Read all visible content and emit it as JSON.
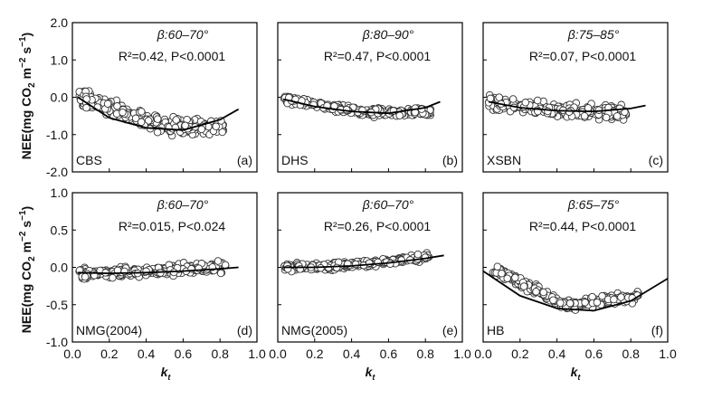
{
  "y_axis_title": {
    "pre": "NEE(mg CO",
    "sub": "2",
    "mid1": " m",
    "sup1": "−2",
    "mid2": " s",
    "sup2": "−1",
    "post": ")"
  },
  "x_axis_title": {
    "main": "k",
    "sub": "t"
  },
  "x_ticks": [
    "0.0",
    "0.2",
    "0.4",
    "0.6",
    "0.8",
    "1.0"
  ],
  "colors": {
    "marker_fill": "#ffffff",
    "marker_stroke": "#333333",
    "line": "#000000",
    "frame": "#000000"
  },
  "chart_data": [
    {
      "type": "scatter",
      "site": "CBS",
      "panel": "(a)",
      "beta": "β:60–70°",
      "r2": "R²=0.42",
      "p": "P<0.0001",
      "ylim": [
        -2.0,
        2.0
      ],
      "yticks": [
        "-2.0",
        "-1.0",
        "0.0",
        "1.0",
        "2.0"
      ],
      "xlim": [
        0.0,
        1.0
      ],
      "scatter_range": [
        0.03,
        0.83
      ],
      "center": [
        0.05,
        0.0,
        0.5,
        -0.78,
        0.75,
        -0.8
      ],
      "spread": 0.3,
      "fit": {
        "x": [
          0.03,
          0.2,
          0.4,
          0.6,
          0.8,
          0.9
        ],
        "y": [
          0.0,
          -0.55,
          -0.82,
          -0.88,
          -0.6,
          -0.32
        ]
      }
    },
    {
      "type": "scatter",
      "site": "DHS",
      "panel": "(b)",
      "beta": "β:80–90°",
      "r2": "R²=0.47",
      "p": "P<0.0001",
      "ylim": [
        -2.0,
        2.0
      ],
      "yticks": [
        "-2.0",
        "-1.0",
        "0.0",
        "1.0",
        "2.0"
      ],
      "xlim": [
        0.0,
        1.0
      ],
      "scatter_range": [
        0.03,
        0.83
      ],
      "center": [
        0.05,
        -0.05,
        0.45,
        -0.4,
        0.75,
        -0.4
      ],
      "spread": 0.15,
      "fit": {
        "x": [
          0.03,
          0.2,
          0.4,
          0.6,
          0.8,
          0.88
        ],
        "y": [
          -0.05,
          -0.25,
          -0.38,
          -0.43,
          -0.28,
          -0.12
        ]
      }
    },
    {
      "type": "scatter",
      "site": "XSBN",
      "panel": "(c)",
      "beta": "β:75–85°",
      "r2": "R²=0.07",
      "p": "P<0.0001",
      "ylim": [
        -2.0,
        2.0
      ],
      "yticks": [
        "-2.0",
        "-1.0",
        "0.0",
        "1.0",
        "2.0"
      ],
      "xlim": [
        0.0,
        1.0
      ],
      "scatter_range": [
        0.03,
        0.78
      ],
      "center": [
        0.05,
        -0.15,
        0.4,
        -0.35,
        0.75,
        -0.4
      ],
      "spread": 0.25,
      "fit": {
        "x": [
          0.03,
          0.2,
          0.4,
          0.6,
          0.8,
          0.88
        ],
        "y": [
          -0.12,
          -0.28,
          -0.36,
          -0.38,
          -0.3,
          -0.22
        ]
      }
    },
    {
      "type": "scatter",
      "site": "NMG(2004)",
      "panel": "(d)",
      "beta": "β:60–70°",
      "r2": "R²=0.015",
      "p": "P<0.024",
      "ylim": [
        -1.0,
        1.0
      ],
      "yticks": [
        "-1.0",
        "-0.5",
        "0.0",
        "0.5",
        "1.0"
      ],
      "xlim": [
        0.0,
        1.0
      ],
      "scatter_range": [
        0.03,
        0.83
      ],
      "center": [
        0.05,
        -0.08,
        0.45,
        -0.05,
        0.75,
        0.0
      ],
      "spread": 0.1,
      "fit": {
        "x": [
          0.03,
          0.2,
          0.4,
          0.6,
          0.8,
          0.9
        ],
        "y": [
          -0.07,
          -0.08,
          -0.07,
          -0.05,
          -0.02,
          0.0
        ]
      }
    },
    {
      "type": "scatter",
      "site": "NMG(2005)",
      "panel": "(e)",
      "beta": "β:60–70°",
      "r2": "R²=0.26",
      "p": "P<0.0001",
      "ylim": [
        -1.0,
        1.0
      ],
      "yticks": [
        "-1.0",
        "-0.5",
        "0.0",
        "0.5",
        "1.0"
      ],
      "xlim": [
        0.0,
        1.0
      ],
      "scatter_range": [
        0.03,
        0.82
      ],
      "center": [
        0.05,
        0.0,
        0.45,
        0.03,
        0.75,
        0.12
      ],
      "spread": 0.07,
      "fit": {
        "x": [
          0.03,
          0.2,
          0.4,
          0.6,
          0.8,
          0.9
        ],
        "y": [
          0.0,
          0.0,
          0.02,
          0.06,
          0.12,
          0.16
        ]
      }
    },
    {
      "type": "scatter",
      "site": "HB",
      "panel": "(f)",
      "beta": "β:65–75°",
      "r2": "R²=0.44",
      "p": "P<0.0001",
      "ylim": [
        -1.0,
        1.0
      ],
      "yticks": [
        "-1.0",
        "-0.5",
        "0.0",
        "0.5",
        "1.0"
      ],
      "xlim": [
        0.0,
        1.0
      ],
      "scatter_range": [
        0.05,
        0.85
      ],
      "center": [
        0.05,
        -0.02,
        0.45,
        -0.5,
        0.75,
        -0.42
      ],
      "spread": 0.1,
      "fit": {
        "x": [
          0.0,
          0.2,
          0.4,
          0.6,
          0.8,
          1.0
        ],
        "y": [
          -0.05,
          -0.38,
          -0.55,
          -0.58,
          -0.45,
          -0.15
        ]
      }
    }
  ]
}
